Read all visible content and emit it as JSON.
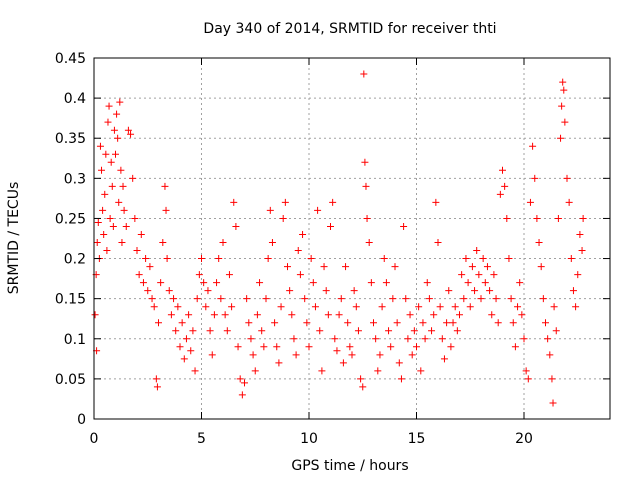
{
  "chart_data": {
    "type": "scatter",
    "title": "Day 340 of 2014, SRMTID for receiver thti",
    "xlabel": "GPS time / hours",
    "ylabel": "SRMTID / TECUs",
    "xlim": [
      0,
      24
    ],
    "ylim": [
      0,
      0.45
    ],
    "xticks": [
      0,
      5,
      10,
      15,
      20
    ],
    "yticks": [
      0,
      0.05,
      0.1,
      0.15,
      0.2,
      0.25,
      0.3,
      0.35,
      0.4,
      0.45
    ],
    "xtick_labels": [
      "0",
      "5",
      "10",
      "15",
      "20"
    ],
    "ytick_labels": [
      "0",
      "0.05",
      "0.1",
      "0.15",
      "0.2",
      "0.25",
      "0.3",
      "0.35",
      "0.4",
      "0.45"
    ],
    "grid": true,
    "marker": "+",
    "color": "#ff0000",
    "series": [
      {
        "points": [
          [
            0.05,
            0.13
          ],
          [
            0.1,
            0.18
          ],
          [
            0.12,
            0.085
          ],
          [
            0.15,
            0.22
          ],
          [
            0.2,
            0.245
          ],
          [
            0.25,
            0.2
          ],
          [
            0.3,
            0.34
          ],
          [
            0.35,
            0.31
          ],
          [
            0.4,
            0.26
          ],
          [
            0.45,
            0.23
          ],
          [
            0.5,
            0.28
          ],
          [
            0.55,
            0.33
          ],
          [
            0.6,
            0.21
          ],
          [
            0.65,
            0.37
          ],
          [
            0.7,
            0.39
          ],
          [
            0.75,
            0.25
          ],
          [
            0.8,
            0.32
          ],
          [
            0.85,
            0.29
          ],
          [
            0.9,
            0.24
          ],
          [
            0.95,
            0.36
          ],
          [
            1.0,
            0.33
          ],
          [
            1.05,
            0.38
          ],
          [
            1.1,
            0.35
          ],
          [
            1.15,
            0.27
          ],
          [
            1.2,
            0.395
          ],
          [
            1.25,
            0.31
          ],
          [
            1.3,
            0.22
          ],
          [
            1.35,
            0.29
          ],
          [
            1.4,
            0.26
          ],
          [
            1.5,
            0.24
          ],
          [
            1.6,
            0.36
          ],
          [
            1.7,
            0.355
          ],
          [
            1.8,
            0.3
          ],
          [
            1.9,
            0.25
          ],
          [
            2.0,
            0.21
          ],
          [
            2.1,
            0.18
          ],
          [
            2.2,
            0.23
          ],
          [
            2.3,
            0.17
          ],
          [
            2.4,
            0.2
          ],
          [
            2.5,
            0.16
          ],
          [
            2.6,
            0.19
          ],
          [
            2.7,
            0.15
          ],
          [
            2.8,
            0.14
          ],
          [
            2.9,
            0.05
          ],
          [
            2.95,
            0.04
          ],
          [
            3.0,
            0.12
          ],
          [
            3.1,
            0.17
          ],
          [
            3.2,
            0.22
          ],
          [
            3.3,
            0.29
          ],
          [
            3.35,
            0.26
          ],
          [
            3.4,
            0.2
          ],
          [
            3.5,
            0.16
          ],
          [
            3.6,
            0.13
          ],
          [
            3.7,
            0.15
          ],
          [
            3.8,
            0.11
          ],
          [
            3.9,
            0.14
          ],
          [
            4.0,
            0.09
          ],
          [
            4.1,
            0.12
          ],
          [
            4.2,
            0.075
          ],
          [
            4.3,
            0.1
          ],
          [
            4.4,
            0.13
          ],
          [
            4.5,
            0.085
          ],
          [
            4.6,
            0.11
          ],
          [
            4.7,
            0.06
          ],
          [
            4.8,
            0.15
          ],
          [
            4.9,
            0.18
          ],
          [
            5.0,
            0.2
          ],
          [
            5.1,
            0.17
          ],
          [
            5.2,
            0.14
          ],
          [
            5.3,
            0.16
          ],
          [
            5.4,
            0.11
          ],
          [
            5.5,
            0.08
          ],
          [
            5.6,
            0.13
          ],
          [
            5.7,
            0.17
          ],
          [
            5.8,
            0.2
          ],
          [
            5.9,
            0.15
          ],
          [
            6.0,
            0.22
          ],
          [
            6.1,
            0.13
          ],
          [
            6.2,
            0.11
          ],
          [
            6.3,
            0.18
          ],
          [
            6.4,
            0.14
          ],
          [
            6.5,
            0.27
          ],
          [
            6.6,
            0.24
          ],
          [
            6.7,
            0.09
          ],
          [
            6.8,
            0.05
          ],
          [
            6.9,
            0.03
          ],
          [
            7.0,
            0.045
          ],
          [
            7.1,
            0.15
          ],
          [
            7.2,
            0.12
          ],
          [
            7.3,
            0.1
          ],
          [
            7.4,
            0.08
          ],
          [
            7.5,
            0.06
          ],
          [
            7.6,
            0.13
          ],
          [
            7.7,
            0.17
          ],
          [
            7.8,
            0.11
          ],
          [
            7.9,
            0.09
          ],
          [
            8.0,
            0.15
          ],
          [
            8.1,
            0.2
          ],
          [
            8.2,
            0.26
          ],
          [
            8.3,
            0.22
          ],
          [
            8.4,
            0.12
          ],
          [
            8.5,
            0.09
          ],
          [
            8.6,
            0.07
          ],
          [
            8.7,
            0.14
          ],
          [
            8.8,
            0.25
          ],
          [
            8.9,
            0.27
          ],
          [
            9.0,
            0.19
          ],
          [
            9.1,
            0.16
          ],
          [
            9.2,
            0.13
          ],
          [
            9.3,
            0.1
          ],
          [
            9.4,
            0.08
          ],
          [
            9.5,
            0.21
          ],
          [
            9.6,
            0.18
          ],
          [
            9.7,
            0.23
          ],
          [
            9.8,
            0.15
          ],
          [
            9.9,
            0.12
          ],
          [
            10.0,
            0.09
          ],
          [
            10.1,
            0.2
          ],
          [
            10.2,
            0.17
          ],
          [
            10.3,
            0.14
          ],
          [
            10.4,
            0.26
          ],
          [
            10.5,
            0.11
          ],
          [
            10.6,
            0.06
          ],
          [
            10.7,
            0.19
          ],
          [
            10.8,
            0.16
          ],
          [
            10.9,
            0.13
          ],
          [
            11.0,
            0.24
          ],
          [
            11.1,
            0.27
          ],
          [
            11.2,
            0.1
          ],
          [
            11.3,
            0.085
          ],
          [
            11.4,
            0.13
          ],
          [
            11.5,
            0.15
          ],
          [
            11.6,
            0.07
          ],
          [
            11.7,
            0.19
          ],
          [
            11.8,
            0.12
          ],
          [
            11.9,
            0.09
          ],
          [
            12.0,
            0.08
          ],
          [
            12.1,
            0.16
          ],
          [
            12.2,
            0.14
          ],
          [
            12.3,
            0.11
          ],
          [
            12.4,
            0.05
          ],
          [
            12.5,
            0.04
          ],
          [
            12.55,
            0.43
          ],
          [
            12.6,
            0.32
          ],
          [
            12.65,
            0.29
          ],
          [
            12.7,
            0.25
          ],
          [
            12.8,
            0.22
          ],
          [
            12.9,
            0.17
          ],
          [
            13.0,
            0.12
          ],
          [
            13.1,
            0.1
          ],
          [
            13.2,
            0.06
          ],
          [
            13.3,
            0.08
          ],
          [
            13.4,
            0.14
          ],
          [
            13.5,
            0.2
          ],
          [
            13.6,
            0.17
          ],
          [
            13.7,
            0.11
          ],
          [
            13.8,
            0.09
          ],
          [
            13.9,
            0.15
          ],
          [
            14.0,
            0.19
          ],
          [
            14.1,
            0.12
          ],
          [
            14.2,
            0.07
          ],
          [
            14.3,
            0.05
          ],
          [
            14.4,
            0.24
          ],
          [
            14.5,
            0.15
          ],
          [
            14.6,
            0.1
          ],
          [
            14.7,
            0.13
          ],
          [
            14.8,
            0.08
          ],
          [
            14.9,
            0.11
          ],
          [
            15.0,
            0.09
          ],
          [
            15.1,
            0.14
          ],
          [
            15.2,
            0.06
          ],
          [
            15.3,
            0.12
          ],
          [
            15.4,
            0.1
          ],
          [
            15.5,
            0.17
          ],
          [
            15.6,
            0.15
          ],
          [
            15.7,
            0.11
          ],
          [
            15.8,
            0.13
          ],
          [
            15.9,
            0.27
          ],
          [
            16.0,
            0.22
          ],
          [
            16.1,
            0.14
          ],
          [
            16.2,
            0.1
          ],
          [
            16.3,
            0.075
          ],
          [
            16.4,
            0.12
          ],
          [
            16.5,
            0.16
          ],
          [
            16.6,
            0.09
          ],
          [
            16.7,
            0.12
          ],
          [
            16.8,
            0.14
          ],
          [
            16.9,
            0.11
          ],
          [
            17.0,
            0.13
          ],
          [
            17.1,
            0.18
          ],
          [
            17.2,
            0.15
          ],
          [
            17.3,
            0.2
          ],
          [
            17.4,
            0.17
          ],
          [
            17.5,
            0.14
          ],
          [
            17.6,
            0.19
          ],
          [
            17.7,
            0.16
          ],
          [
            17.8,
            0.21
          ],
          [
            17.9,
            0.18
          ],
          [
            18.0,
            0.15
          ],
          [
            18.1,
            0.2
          ],
          [
            18.2,
            0.17
          ],
          [
            18.3,
            0.19
          ],
          [
            18.4,
            0.16
          ],
          [
            18.5,
            0.13
          ],
          [
            18.6,
            0.18
          ],
          [
            18.7,
            0.15
          ],
          [
            18.8,
            0.12
          ],
          [
            18.9,
            0.28
          ],
          [
            19.0,
            0.31
          ],
          [
            19.1,
            0.29
          ],
          [
            19.2,
            0.25
          ],
          [
            19.3,
            0.2
          ],
          [
            19.4,
            0.15
          ],
          [
            19.5,
            0.12
          ],
          [
            19.6,
            0.09
          ],
          [
            19.7,
            0.14
          ],
          [
            19.8,
            0.17
          ],
          [
            19.9,
            0.13
          ],
          [
            20.0,
            0.1
          ],
          [
            20.1,
            0.06
          ],
          [
            20.2,
            0.05
          ],
          [
            20.3,
            0.27
          ],
          [
            20.4,
            0.34
          ],
          [
            20.5,
            0.3
          ],
          [
            20.6,
            0.25
          ],
          [
            20.7,
            0.22
          ],
          [
            20.8,
            0.19
          ],
          [
            20.9,
            0.15
          ],
          [
            21.0,
            0.12
          ],
          [
            21.1,
            0.1
          ],
          [
            21.2,
            0.08
          ],
          [
            21.3,
            0.05
          ],
          [
            21.35,
            0.02
          ],
          [
            21.4,
            0.14
          ],
          [
            21.5,
            0.11
          ],
          [
            21.6,
            0.25
          ],
          [
            21.7,
            0.35
          ],
          [
            21.75,
            0.39
          ],
          [
            21.8,
            0.42
          ],
          [
            21.85,
            0.41
          ],
          [
            21.9,
            0.37
          ],
          [
            22.0,
            0.3
          ],
          [
            22.1,
            0.27
          ],
          [
            22.2,
            0.2
          ],
          [
            22.3,
            0.16
          ],
          [
            22.4,
            0.14
          ],
          [
            22.5,
            0.18
          ],
          [
            22.6,
            0.23
          ],
          [
            22.7,
            0.21
          ],
          [
            22.75,
            0.25
          ]
        ]
      }
    ]
  }
}
